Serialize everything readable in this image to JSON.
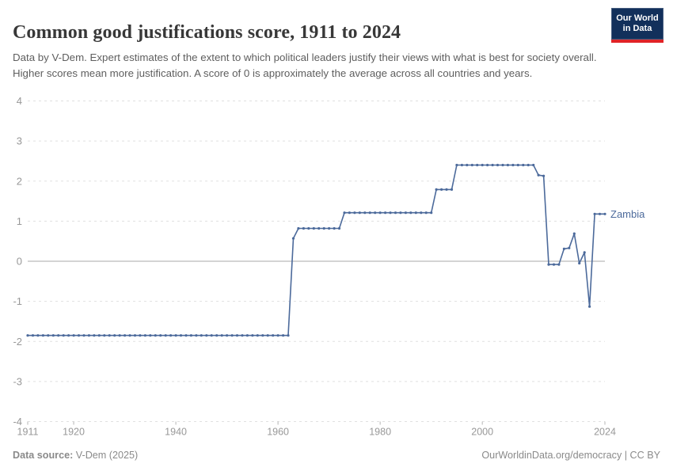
{
  "header": {
    "title": "Common good justifications score, 1911 to 2024",
    "subtitle": "Data by V-Dem. Expert estimates of the extent to which political leaders justify their views with what is best for society overall. Higher scores mean more justification. A score of 0 is approximately the average across all countries and years."
  },
  "logo": {
    "line1": "Our World",
    "line2": "in Data",
    "bg_color": "#12305b",
    "stripe_color": "#e02327"
  },
  "footer": {
    "source_label": "Data source:",
    "source_value": " V-Dem (2025)",
    "credit": "OurWorldinData.org/democracy | CC BY"
  },
  "colors": {
    "series": "#4c6a9b",
    "grid": "#e0e0e0",
    "zero_line": "#a8a8a8",
    "tick_text": "#989898",
    "axis_tick": "#b5b5b5"
  },
  "chart_data": {
    "type": "line",
    "title": "Common good justifications score, 1911 to 2024",
    "xlabel": "",
    "ylabel": "",
    "xlim": [
      1911,
      2024
    ],
    "ylim": [
      -4,
      4
    ],
    "x_ticks": [
      1911,
      1920,
      1940,
      1960,
      1980,
      2000,
      2024
    ],
    "y_ticks": [
      4,
      3,
      2,
      1,
      0,
      -1,
      -2,
      -3,
      -4
    ],
    "grid": "horizontal-dashed",
    "legend_position": "end-of-line-label",
    "series": [
      {
        "name": "Zambia",
        "color": "#4c6a9b",
        "points": [
          [
            1911,
            -1.85
          ],
          [
            1912,
            -1.85
          ],
          [
            1913,
            -1.85
          ],
          [
            1914,
            -1.85
          ],
          [
            1915,
            -1.85
          ],
          [
            1916,
            -1.85
          ],
          [
            1917,
            -1.85
          ],
          [
            1918,
            -1.85
          ],
          [
            1919,
            -1.85
          ],
          [
            1920,
            -1.85
          ],
          [
            1921,
            -1.85
          ],
          [
            1922,
            -1.85
          ],
          [
            1923,
            -1.85
          ],
          [
            1924,
            -1.85
          ],
          [
            1925,
            -1.85
          ],
          [
            1926,
            -1.85
          ],
          [
            1927,
            -1.85
          ],
          [
            1928,
            -1.85
          ],
          [
            1929,
            -1.85
          ],
          [
            1930,
            -1.85
          ],
          [
            1931,
            -1.85
          ],
          [
            1932,
            -1.85
          ],
          [
            1933,
            -1.85
          ],
          [
            1934,
            -1.85
          ],
          [
            1935,
            -1.85
          ],
          [
            1936,
            -1.85
          ],
          [
            1937,
            -1.85
          ],
          [
            1938,
            -1.85
          ],
          [
            1939,
            -1.85
          ],
          [
            1940,
            -1.85
          ],
          [
            1941,
            -1.85
          ],
          [
            1942,
            -1.85
          ],
          [
            1943,
            -1.85
          ],
          [
            1944,
            -1.85
          ],
          [
            1945,
            -1.85
          ],
          [
            1946,
            -1.85
          ],
          [
            1947,
            -1.85
          ],
          [
            1948,
            -1.85
          ],
          [
            1949,
            -1.85
          ],
          [
            1950,
            -1.85
          ],
          [
            1951,
            -1.85
          ],
          [
            1952,
            -1.85
          ],
          [
            1953,
            -1.85
          ],
          [
            1954,
            -1.85
          ],
          [
            1955,
            -1.85
          ],
          [
            1956,
            -1.85
          ],
          [
            1957,
            -1.85
          ],
          [
            1958,
            -1.85
          ],
          [
            1959,
            -1.85
          ],
          [
            1960,
            -1.85
          ],
          [
            1961,
            -1.85
          ],
          [
            1962,
            -1.85
          ],
          [
            1963,
            0.57
          ],
          [
            1964,
            0.82
          ],
          [
            1965,
            0.82
          ],
          [
            1966,
            0.82
          ],
          [
            1967,
            0.82
          ],
          [
            1968,
            0.82
          ],
          [
            1969,
            0.82
          ],
          [
            1970,
            0.82
          ],
          [
            1971,
            0.82
          ],
          [
            1972,
            0.82
          ],
          [
            1973,
            1.21
          ],
          [
            1974,
            1.21
          ],
          [
            1975,
            1.21
          ],
          [
            1976,
            1.21
          ],
          [
            1977,
            1.21
          ],
          [
            1978,
            1.21
          ],
          [
            1979,
            1.21
          ],
          [
            1980,
            1.21
          ],
          [
            1981,
            1.21
          ],
          [
            1982,
            1.21
          ],
          [
            1983,
            1.21
          ],
          [
            1984,
            1.21
          ],
          [
            1985,
            1.21
          ],
          [
            1986,
            1.21
          ],
          [
            1987,
            1.21
          ],
          [
            1988,
            1.21
          ],
          [
            1989,
            1.21
          ],
          [
            1990,
            1.21
          ],
          [
            1991,
            1.79
          ],
          [
            1992,
            1.79
          ],
          [
            1993,
            1.79
          ],
          [
            1994,
            1.79
          ],
          [
            1995,
            2.4
          ],
          [
            1996,
            2.4
          ],
          [
            1997,
            2.4
          ],
          [
            1998,
            2.4
          ],
          [
            1999,
            2.4
          ],
          [
            2000,
            2.4
          ],
          [
            2001,
            2.4
          ],
          [
            2002,
            2.4
          ],
          [
            2003,
            2.4
          ],
          [
            2004,
            2.4
          ],
          [
            2005,
            2.4
          ],
          [
            2006,
            2.4
          ],
          [
            2007,
            2.4
          ],
          [
            2008,
            2.4
          ],
          [
            2009,
            2.4
          ],
          [
            2010,
            2.4
          ],
          [
            2011,
            2.15
          ],
          [
            2012,
            2.13
          ],
          [
            2013,
            -0.08
          ],
          [
            2014,
            -0.08
          ],
          [
            2015,
            -0.08
          ],
          [
            2016,
            0.31
          ],
          [
            2017,
            0.33
          ],
          [
            2018,
            0.69
          ],
          [
            2019,
            -0.05
          ],
          [
            2020,
            0.22
          ],
          [
            2021,
            -1.13
          ],
          [
            2022,
            1.18
          ],
          [
            2023,
            1.18
          ],
          [
            2024,
            1.18
          ]
        ]
      }
    ]
  }
}
